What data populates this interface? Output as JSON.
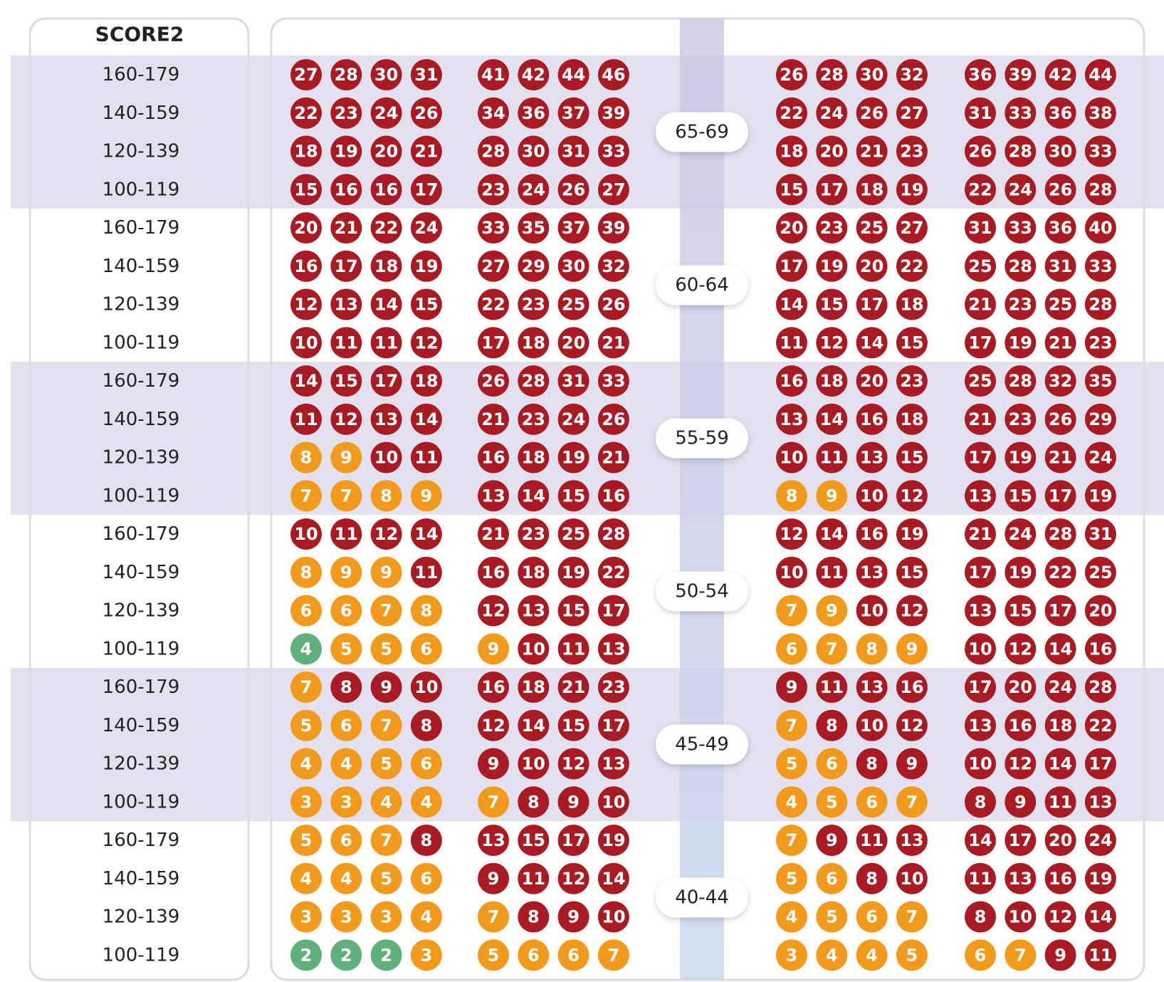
{
  "header": {
    "title": "SCORE2"
  },
  "colors": {
    "low": "#5fb07a",
    "mid": "#f29a1c",
    "high": "#aa1a22"
  },
  "groups": [
    {
      "age": "65-69",
      "cutoffs": [
        5,
        10
      ],
      "rows": [
        {
          "label": "160-179",
          "values": [
            27,
            28,
            30,
            31,
            41,
            42,
            44,
            46,
            26,
            28,
            30,
            32,
            36,
            39,
            42,
            44
          ]
        },
        {
          "label": "140-159",
          "values": [
            22,
            23,
            24,
            26,
            34,
            36,
            37,
            39,
            22,
            24,
            26,
            27,
            31,
            33,
            36,
            38
          ]
        },
        {
          "label": "120-139",
          "values": [
            18,
            19,
            20,
            21,
            28,
            30,
            31,
            33,
            18,
            20,
            21,
            23,
            26,
            28,
            30,
            33
          ]
        },
        {
          "label": "100-119",
          "values": [
            15,
            16,
            16,
            17,
            23,
            24,
            26,
            27,
            15,
            17,
            18,
            19,
            22,
            24,
            26,
            28
          ]
        }
      ]
    },
    {
      "age": "60-64",
      "cutoffs": [
        5,
        10
      ],
      "rows": [
        {
          "label": "160-179",
          "values": [
            20,
            21,
            22,
            24,
            33,
            35,
            37,
            39,
            20,
            23,
            25,
            27,
            31,
            33,
            36,
            40
          ]
        },
        {
          "label": "140-159",
          "values": [
            16,
            17,
            18,
            19,
            27,
            29,
            30,
            32,
            17,
            19,
            20,
            22,
            25,
            28,
            31,
            33
          ]
        },
        {
          "label": "120-139",
          "values": [
            12,
            13,
            14,
            15,
            22,
            23,
            25,
            26,
            14,
            15,
            17,
            18,
            21,
            23,
            25,
            28
          ]
        },
        {
          "label": "100-119",
          "values": [
            10,
            11,
            11,
            12,
            17,
            18,
            20,
            21,
            11,
            12,
            14,
            15,
            17,
            19,
            21,
            23
          ]
        }
      ]
    },
    {
      "age": "55-59",
      "cutoffs": [
        5,
        10
      ],
      "rows": [
        {
          "label": "160-179",
          "values": [
            14,
            15,
            17,
            18,
            26,
            28,
            31,
            33,
            16,
            18,
            20,
            23,
            25,
            28,
            32,
            35
          ]
        },
        {
          "label": "140-159",
          "values": [
            11,
            12,
            13,
            14,
            21,
            23,
            24,
            26,
            13,
            14,
            16,
            18,
            21,
            23,
            26,
            29
          ]
        },
        {
          "label": "120-139",
          "values": [
            8,
            9,
            10,
            11,
            16,
            18,
            19,
            21,
            10,
            11,
            13,
            15,
            17,
            19,
            21,
            24
          ]
        },
        {
          "label": "100-119",
          "values": [
            7,
            7,
            8,
            9,
            13,
            14,
            15,
            16,
            8,
            9,
            10,
            12,
            13,
            15,
            17,
            19
          ]
        }
      ]
    },
    {
      "age": "50-54",
      "cutoffs": [
        5,
        10
      ],
      "rows": [
        {
          "label": "160-179",
          "values": [
            10,
            11,
            12,
            14,
            21,
            23,
            25,
            28,
            12,
            14,
            16,
            19,
            21,
            24,
            28,
            31
          ]
        },
        {
          "label": "140-159",
          "values": [
            8,
            9,
            9,
            11,
            16,
            18,
            19,
            22,
            10,
            11,
            13,
            15,
            17,
            19,
            22,
            25
          ]
        },
        {
          "label": "120-139",
          "values": [
            6,
            6,
            7,
            8,
            12,
            13,
            15,
            17,
            7,
            9,
            10,
            12,
            13,
            15,
            17,
            20
          ]
        },
        {
          "label": "100-119",
          "values": [
            4,
            5,
            5,
            6,
            9,
            10,
            11,
            13,
            6,
            7,
            8,
            9,
            10,
            12,
            14,
            16
          ]
        }
      ]
    },
    {
      "age": "45-49",
      "cutoffs": [
        2.5,
        7.5
      ],
      "rows": [
        {
          "label": "160-179",
          "values": [
            7,
            8,
            9,
            10,
            16,
            18,
            21,
            23,
            9,
            11,
            13,
            16,
            17,
            20,
            24,
            28
          ]
        },
        {
          "label": "140-159",
          "values": [
            5,
            6,
            7,
            8,
            12,
            14,
            15,
            17,
            7,
            8,
            10,
            12,
            13,
            16,
            18,
            22
          ]
        },
        {
          "label": "120-139",
          "values": [
            4,
            4,
            5,
            6,
            9,
            10,
            12,
            13,
            5,
            6,
            8,
            9,
            10,
            12,
            14,
            17
          ]
        },
        {
          "label": "100-119",
          "values": [
            3,
            3,
            4,
            4,
            7,
            8,
            9,
            10,
            4,
            5,
            6,
            7,
            8,
            9,
            11,
            13
          ]
        }
      ]
    },
    {
      "age": "40-44",
      "cutoffs": [
        2.5,
        7.5
      ],
      "rows": [
        {
          "label": "160-179",
          "values": [
            5,
            6,
            7,
            8,
            13,
            15,
            17,
            19,
            7,
            9,
            11,
            13,
            14,
            17,
            20,
            24
          ]
        },
        {
          "label": "140-159",
          "values": [
            4,
            4,
            5,
            6,
            9,
            11,
            12,
            14,
            5,
            6,
            8,
            10,
            11,
            13,
            16,
            19
          ]
        },
        {
          "label": "120-139",
          "values": [
            3,
            3,
            3,
            4,
            7,
            8,
            9,
            10,
            4,
            5,
            6,
            7,
            8,
            10,
            12,
            14
          ]
        },
        {
          "label": "100-119",
          "values": [
            2,
            2,
            2,
            3,
            5,
            6,
            6,
            7,
            3,
            4,
            4,
            5,
            6,
            7,
            9,
            11
          ]
        }
      ]
    }
  ]
}
